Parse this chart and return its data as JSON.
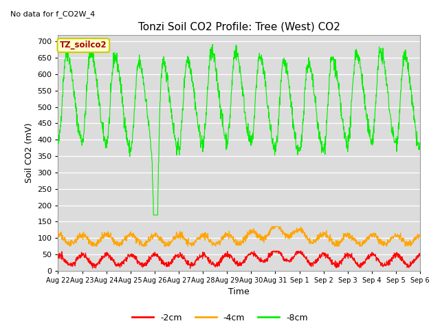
{
  "title": "Tonzi Soil CO2 Profile: Tree (West) CO2",
  "top_left_text": "No data for f_CO2W_4",
  "ylabel": "Soil CO2 (mV)",
  "xlabel": "Time",
  "ylim": [
    0,
    720
  ],
  "yticks": [
    0,
    50,
    100,
    150,
    200,
    250,
    300,
    350,
    400,
    450,
    500,
    550,
    600,
    650,
    700
  ],
  "legend_label": "TZ_soilco2",
  "line_labels": [
    "-2cm",
    "-4cm",
    "-8cm"
  ],
  "line_colors": [
    "#ff0000",
    "#ffa500",
    "#00ee00"
  ],
  "xtick_labels": [
    "Aug 22",
    "Aug 23",
    "Aug 24",
    "Aug 25",
    "Aug 26",
    "Aug 27",
    "Aug 28",
    "Aug 29",
    "Aug 30",
    "Aug 31",
    "Sep 1",
    "Sep 2",
    "Sep 3",
    "Sep 4",
    "Sep 5",
    "Sep 6"
  ],
  "bg_color": "#dcdcdc",
  "fig_bg_color": "#ffffff",
  "legend_box_color": "#ffffcc",
  "legend_box_edge": "#cccc00",
  "title_fontsize": 11,
  "tick_fontsize": 8,
  "axis_label_fontsize": 9
}
